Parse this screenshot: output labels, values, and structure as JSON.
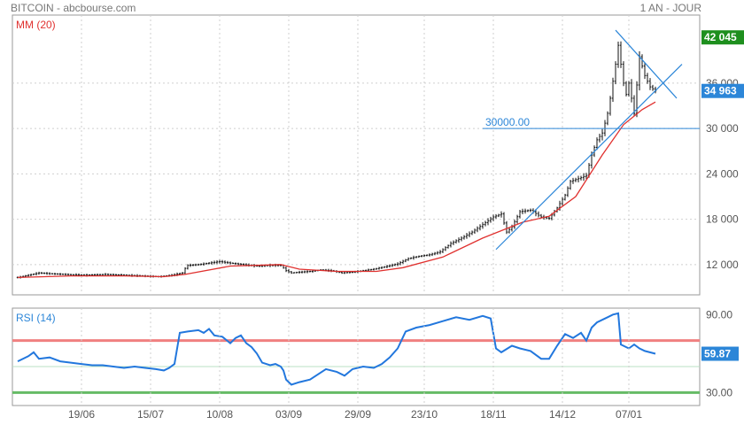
{
  "header": {
    "title": "BITCOIN - abcbourse.com",
    "period": "1 AN - JOUR"
  },
  "colors": {
    "candle": "#111111",
    "mm": "#e0312f",
    "trend": "#2c86d8",
    "level": "#2c86d8",
    "rsi": "#2277dd",
    "rsi_high": "#f08080",
    "rsi_low": "#66bb66",
    "rsi_mid": "#b8e0c4",
    "high_badge": "#1e8f1e",
    "last_badge": "#2c86d8",
    "rsi_badge": "#2c86d8",
    "grid": "#cfcfcf"
  },
  "chart_data": [
    {
      "type": "candlestick",
      "title": "BITCOIN",
      "indicator_label": "MM (20)",
      "x_ticks": [
        "19/06",
        "15/07",
        "10/08",
        "03/09",
        "29/09",
        "23/10",
        "18/11",
        "14/12",
        "07/01"
      ],
      "y_ticks": [
        "12 000",
        "18 000",
        "24 000",
        "30 000",
        "36 000"
      ],
      "ylim": [
        8000,
        45000
      ],
      "price_path": [
        [
          0,
          10300
        ],
        [
          4,
          10600
        ],
        [
          8,
          10900
        ],
        [
          12,
          10800
        ],
        [
          18,
          10700
        ],
        [
          25,
          10600
        ],
        [
          33,
          10700
        ],
        [
          40,
          10600
        ],
        [
          47,
          10500
        ],
        [
          53,
          10400
        ],
        [
          58,
          10600
        ],
        [
          62,
          10900
        ],
        [
          63,
          11500
        ],
        [
          64,
          11900
        ],
        [
          68,
          12000
        ],
        [
          72,
          12200
        ],
        [
          76,
          12400
        ],
        [
          80,
          12200
        ],
        [
          85,
          12000
        ],
        [
          90,
          11800
        ],
        [
          95,
          11900
        ],
        [
          99,
          11900
        ],
        [
          101,
          11200
        ],
        [
          103,
          10900
        ],
        [
          106,
          11000
        ],
        [
          110,
          11100
        ],
        [
          114,
          11300
        ],
        [
          118,
          11200
        ],
        [
          122,
          10900
        ],
        [
          126,
          11000
        ],
        [
          130,
          11200
        ],
        [
          134,
          11400
        ],
        [
          138,
          11700
        ],
        [
          143,
          12100
        ],
        [
          147,
          12800
        ],
        [
          151,
          13100
        ],
        [
          155,
          13300
        ],
        [
          159,
          13700
        ],
        [
          163,
          14800
        ],
        [
          167,
          15500
        ],
        [
          171,
          16300
        ],
        [
          175,
          17300
        ],
        [
          179,
          18300
        ],
        [
          182,
          18700
        ],
        [
          184,
          16300
        ],
        [
          186,
          17000
        ],
        [
          189,
          19000
        ],
        [
          193,
          19200
        ],
        [
          197,
          18300
        ],
        [
          200,
          18100
        ],
        [
          203,
          19500
        ],
        [
          206,
          21200
        ],
        [
          208,
          23000
        ],
        [
          212,
          23500
        ],
        [
          214,
          23800
        ],
        [
          216,
          26500
        ],
        [
          218,
          28500
        ],
        [
          220,
          29400
        ],
        [
          222,
          32000
        ],
        [
          223,
          34000
        ],
        [
          225,
          38500
        ],
        [
          226,
          41000
        ],
        [
          228,
          36000
        ],
        [
          229,
          34500
        ],
        [
          230,
          36000
        ],
        [
          232,
          32000
        ],
        [
          234,
          39500
        ],
        [
          236,
          37000
        ],
        [
          238,
          35500
        ],
        [
          240,
          34963
        ]
      ],
      "mm_path": [
        [
          0,
          10300
        ],
        [
          20,
          10500
        ],
        [
          40,
          10500
        ],
        [
          55,
          10400
        ],
        [
          63,
          10700
        ],
        [
          80,
          11800
        ],
        [
          99,
          12000
        ],
        [
          106,
          11400
        ],
        [
          120,
          11100
        ],
        [
          135,
          11100
        ],
        [
          145,
          11600
        ],
        [
          160,
          13000
        ],
        [
          175,
          15500
        ],
        [
          190,
          17600
        ],
        [
          200,
          18400
        ],
        [
          210,
          21000
        ],
        [
          220,
          26500
        ],
        [
          228,
          30500
        ],
        [
          235,
          32500
        ],
        [
          240,
          33500
        ]
      ],
      "trendlines": [
        {
          "name": "support",
          "from": [
            180,
            14000
          ],
          "to": [
            250,
            38500
          ]
        },
        {
          "name": "resistance",
          "from": [
            225,
            43000
          ],
          "to": [
            248,
            34000
          ]
        }
      ],
      "level": {
        "label": "30000.00",
        "value": 30000,
        "start_x": 175
      },
      "highest_label": "42 045",
      "highest_value": 42045,
      "last_label": "34 963",
      "last_value": 34963
    },
    {
      "type": "line",
      "title": "RSI (14)",
      "y_ticks": [
        "90.00",
        "30.00"
      ],
      "ylim": [
        20,
        95
      ],
      "levels": [
        {
          "value": 70,
          "role": "overbought"
        },
        {
          "value": 50,
          "role": "middle"
        },
        {
          "value": 30,
          "role": "oversold"
        }
      ],
      "rsi_path": [
        [
          0,
          54
        ],
        [
          4,
          58
        ],
        [
          6,
          61
        ],
        [
          8,
          56
        ],
        [
          12,
          57
        ],
        [
          16,
          54
        ],
        [
          20,
          53
        ],
        [
          24,
          52
        ],
        [
          28,
          51
        ],
        [
          32,
          51
        ],
        [
          36,
          50
        ],
        [
          40,
          49
        ],
        [
          44,
          50
        ],
        [
          48,
          49
        ],
        [
          52,
          48
        ],
        [
          55,
          47
        ],
        [
          57,
          49
        ],
        [
          59,
          52
        ],
        [
          61,
          76
        ],
        [
          64,
          77
        ],
        [
          68,
          78
        ],
        [
          70,
          76
        ],
        [
          72,
          79
        ],
        [
          74,
          74
        ],
        [
          77,
          73
        ],
        [
          80,
          68
        ],
        [
          82,
          72
        ],
        [
          84,
          74
        ],
        [
          86,
          68
        ],
        [
          88,
          65
        ],
        [
          90,
          60
        ],
        [
          92,
          53
        ],
        [
          95,
          51
        ],
        [
          97,
          52
        ],
        [
          99,
          50
        ],
        [
          100,
          47
        ],
        [
          101,
          40
        ],
        [
          103,
          36
        ],
        [
          106,
          38
        ],
        [
          110,
          40
        ],
        [
          113,
          44
        ],
        [
          116,
          48
        ],
        [
          120,
          46
        ],
        [
          123,
          43
        ],
        [
          126,
          48
        ],
        [
          130,
          50
        ],
        [
          134,
          49
        ],
        [
          137,
          52
        ],
        [
          140,
          57
        ],
        [
          143,
          64
        ],
        [
          146,
          77
        ],
        [
          150,
          80
        ],
        [
          155,
          82
        ],
        [
          160,
          85
        ],
        [
          165,
          88
        ],
        [
          170,
          86
        ],
        [
          175,
          89
        ],
        [
          178,
          87
        ],
        [
          180,
          64
        ],
        [
          182,
          61
        ],
        [
          186,
          66
        ],
        [
          189,
          64
        ],
        [
          193,
          62
        ],
        [
          197,
          56
        ],
        [
          200,
          56
        ],
        [
          203,
          66
        ],
        [
          206,
          75
        ],
        [
          209,
          72
        ],
        [
          212,
          76
        ],
        [
          214,
          70
        ],
        [
          216,
          80
        ],
        [
          218,
          84
        ],
        [
          220,
          86
        ],
        [
          222,
          88
        ],
        [
          224,
          90
        ],
        [
          226,
          91
        ],
        [
          227,
          67
        ],
        [
          230,
          64
        ],
        [
          232,
          67
        ],
        [
          234,
          64
        ],
        [
          236,
          62
        ],
        [
          240,
          59.87
        ]
      ],
      "last_label": "59.87",
      "last_value": 59.87
    }
  ]
}
